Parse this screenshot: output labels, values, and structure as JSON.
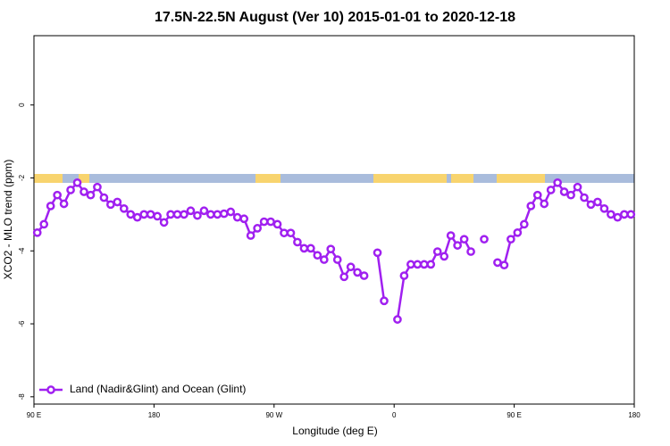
{
  "chart_data": {
    "type": "line",
    "title": "17.5N-22.5N August (Ver 10)   2015-01-01 to 2020-12-18",
    "xlabel": "Longitude (deg E)",
    "ylabel": "XCO2 - MLO trend (ppm)",
    "xlim": [
      90,
      540
    ],
    "ylim": [
      -8.2,
      1.9
    ],
    "xticks": [
      {
        "value": 90,
        "label": "90 E"
      },
      180,
      {
        "value": 270,
        "label": "90 W"
      },
      {
        "value": 360,
        "label": "0"
      },
      {
        "value": 450,
        "label": "90 E"
      },
      {
        "value": 540,
        "label": "180"
      }
    ],
    "yticks": [
      0,
      -2,
      -4,
      -6,
      -8
    ],
    "grid": false,
    "legend": "bottom-left",
    "x": [
      92.5,
      97.5,
      102.5,
      107.5,
      112.5,
      117.5,
      122.5,
      127.5,
      132.5,
      137.5,
      142.5,
      147.5,
      152.5,
      157.5,
      162.5,
      167.5,
      172.5,
      177.5,
      182.5,
      187.5,
      192.5,
      197.5,
      202.5,
      207.5,
      212.5,
      217.5,
      222.5,
      227.5,
      232.5,
      237.5,
      242.5,
      247.5,
      252.5,
      257.5,
      262.5,
      267.5,
      272.5,
      277.5,
      282.5,
      287.5,
      292.5,
      297.5,
      302.5,
      307.5,
      312.5,
      317.5,
      322.5,
      327.5,
      332.5,
      337.5,
      342.5,
      347.5,
      352.5,
      357.5,
      362.5,
      367.5,
      372.5,
      377.5,
      382.5,
      387.5,
      392.5,
      397.5,
      402.5,
      407.5,
      412.5,
      417.5,
      422.5,
      427.5,
      432.5,
      437.5,
      442.5,
      447.5,
      452.5,
      457.5,
      462.5,
      467.5,
      472.5,
      477.5,
      482.5,
      487.5,
      492.5,
      497.5,
      502.5,
      507.5,
      512.5,
      517.5,
      522.5,
      527.5,
      532.5,
      537.5
    ],
    "series": [
      {
        "name": "Land (Nadir&Glint) and Ocean (Glint)",
        "color": "#a020f0",
        "values": [
          -3.5,
          -3.27,
          -2.77,
          -2.47,
          -2.71,
          -2.33,
          -2.13,
          -2.38,
          -2.47,
          -2.25,
          -2.54,
          -2.73,
          -2.66,
          -2.84,
          -3.0,
          -3.08,
          -3.0,
          -3.0,
          -3.05,
          -3.22,
          -3.0,
          -3.0,
          -3.0,
          -2.9,
          -3.03,
          -2.9,
          -3.0,
          -3.0,
          -2.98,
          -2.93,
          -3.08,
          -3.12,
          -3.58,
          -3.38,
          -3.2,
          -3.2,
          -3.27,
          -3.51,
          -3.51,
          -3.76,
          -3.93,
          -3.93,
          -4.12,
          -4.24,
          -3.95,
          -4.24,
          -4.71,
          -4.44,
          -4.59,
          -4.68,
          null,
          -4.05,
          -5.37,
          null,
          -5.88,
          -4.68,
          -4.37,
          -4.37,
          -4.37,
          -4.37,
          -4.02,
          -4.15,
          -3.58,
          -3.85,
          -3.68,
          -4.02,
          null,
          -3.68,
          null,
          -4.32,
          -4.39,
          -3.68,
          -3.5,
          -3.27,
          -2.77,
          -2.47,
          -2.71,
          -2.33,
          -2.13,
          -2.38,
          -2.47,
          -2.25,
          -2.54,
          -2.73,
          -2.66,
          -2.84,
          -3.0,
          -3.08,
          -3.0,
          -3.0
        ]
      }
    ]
  }
}
